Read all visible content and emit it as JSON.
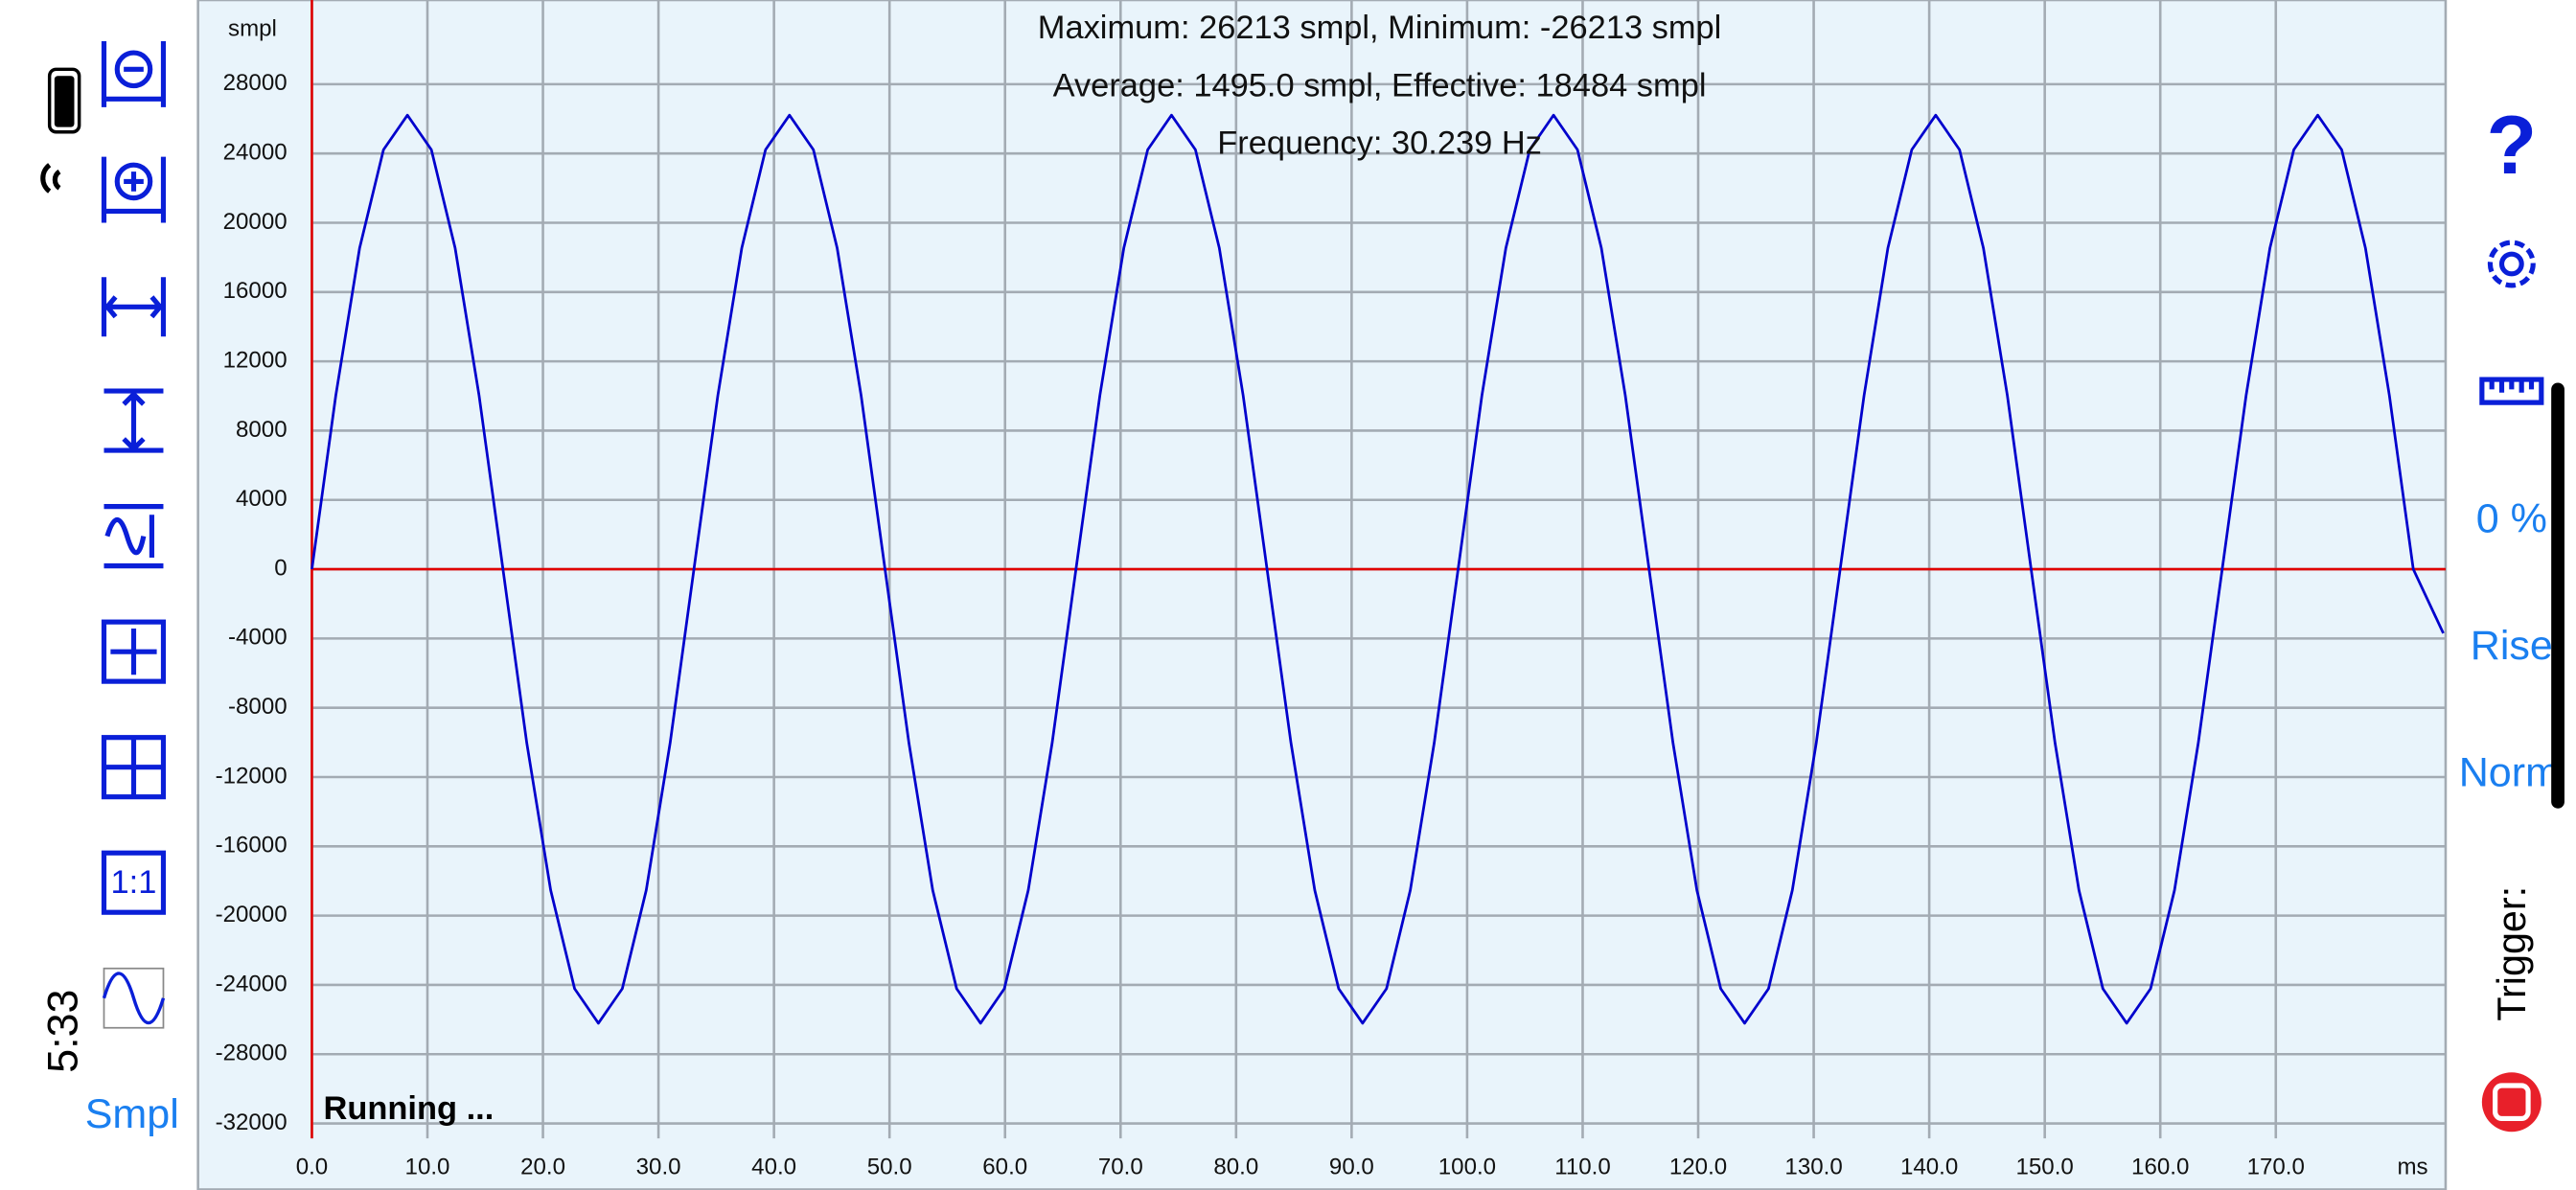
{
  "chart_data": {
    "type": "line",
    "annotations": [
      "Maximum: 26213 smpl, Minimum: -26213 smpl",
      "Average: 1495.0 smpl, Effective: 18484 smpl",
      "Frequency: 30.239 Hz"
    ],
    "y_label": "smpl",
    "x_label": "ms",
    "x": [
      0,
      2.07,
      4.13,
      6.2,
      8.27,
      10.34,
      12.4,
      14.47,
      16.54,
      18.6,
      20.67,
      22.74,
      24.8,
      26.87,
      28.94,
      31.01,
      33.07,
      35.14,
      37.21,
      39.27,
      41.34,
      43.41,
      45.47,
      47.54,
      49.61,
      51.68,
      53.74,
      55.81,
      57.88,
      59.94,
      62.01,
      64.08,
      66.14,
      68.21,
      70.28,
      72.35,
      74.41,
      76.48,
      78.55,
      80.61,
      82.68,
      84.75,
      86.81,
      88.88,
      90.95,
      93.02,
      95.08,
      97.15,
      99.22,
      101.28,
      103.35,
      105.42,
      107.48,
      109.55,
      111.62,
      113.69,
      115.75,
      117.82,
      119.89,
      121.95,
      124.02,
      126.09,
      128.15,
      130.22,
      132.29,
      134.36,
      136.42,
      138.49,
      140.56,
      142.62,
      144.69,
      146.76,
      148.82,
      150.89,
      152.96,
      155.03,
      157.09,
      159.16,
      161.23,
      163.29,
      165.36,
      167.43,
      169.49,
      171.56,
      173.63,
      175.7,
      177.76,
      179.83,
      181.9,
      184.5
    ],
    "values": [
      0,
      10031,
      18535,
      24218,
      26213,
      24218,
      18535,
      10031,
      0,
      -10031,
      -18535,
      -24218,
      -26213,
      -24218,
      -18535,
      -10031,
      0,
      10031,
      18535,
      24218,
      26213,
      24218,
      18535,
      10031,
      0,
      -10031,
      -18535,
      -24218,
      -26213,
      -24218,
      -18535,
      -10031,
      0,
      10031,
      18535,
      24218,
      26213,
      24218,
      18535,
      10031,
      0,
      -10031,
      -18535,
      -24218,
      -26213,
      -24218,
      -18535,
      -10031,
      0,
      10031,
      18535,
      24218,
      26213,
      24218,
      18535,
      10031,
      0,
      -10031,
      -18535,
      -24218,
      -26213,
      -24218,
      -18535,
      -10031,
      0,
      10031,
      18535,
      24218,
      26213,
      24218,
      18535,
      10031,
      0,
      -10031,
      -18535,
      -24218,
      -26213,
      -24218,
      -18535,
      -10031,
      0,
      10031,
      18535,
      24218,
      26213,
      24218,
      18535,
      10031,
      0,
      -3700
    ],
    "color": "#0000cc",
    "axis_color": "#e00000",
    "grid": true,
    "xlim": [
      0,
      184.7
    ],
    "ylim": [
      -32860,
      32860
    ],
    "xticks": [
      {
        "value": 0,
        "label": "0.0"
      },
      {
        "value": 10,
        "label": "10.0"
      },
      {
        "value": 20,
        "label": "20.0"
      },
      {
        "value": 30,
        "label": "30.0"
      },
      {
        "value": 40,
        "label": "40.0"
      },
      {
        "value": 50,
        "label": "50.0"
      },
      {
        "value": 60,
        "label": "60.0"
      },
      {
        "value": 70,
        "label": "70.0"
      },
      {
        "value": 80,
        "label": "80.0"
      },
      {
        "value": 90,
        "label": "90.0"
      },
      {
        "value": 100,
        "label": "100.0"
      },
      {
        "value": 110,
        "label": "110.0"
      },
      {
        "value": 120,
        "label": "120.0"
      },
      {
        "value": 130,
        "label": "130.0"
      },
      {
        "value": 140,
        "label": "140.0"
      },
      {
        "value": 150,
        "label": "150.0"
      },
      {
        "value": 160,
        "label": "160.0"
      },
      {
        "value": 170,
        "label": "170.0"
      }
    ],
    "yticks": [
      28000,
      24000,
      20000,
      16000,
      12000,
      8000,
      4000,
      0,
      -4000,
      -8000,
      -12000,
      -16000,
      -20000,
      -24000,
      -28000,
      -32000
    ]
  },
  "ui": {
    "status": "Running ...",
    "unit_button": "Smpl",
    "time": "5:33",
    "help": "?",
    "level": "0 %",
    "edge": "Rise",
    "mode": "Norm",
    "trigger": "Trigger:"
  }
}
